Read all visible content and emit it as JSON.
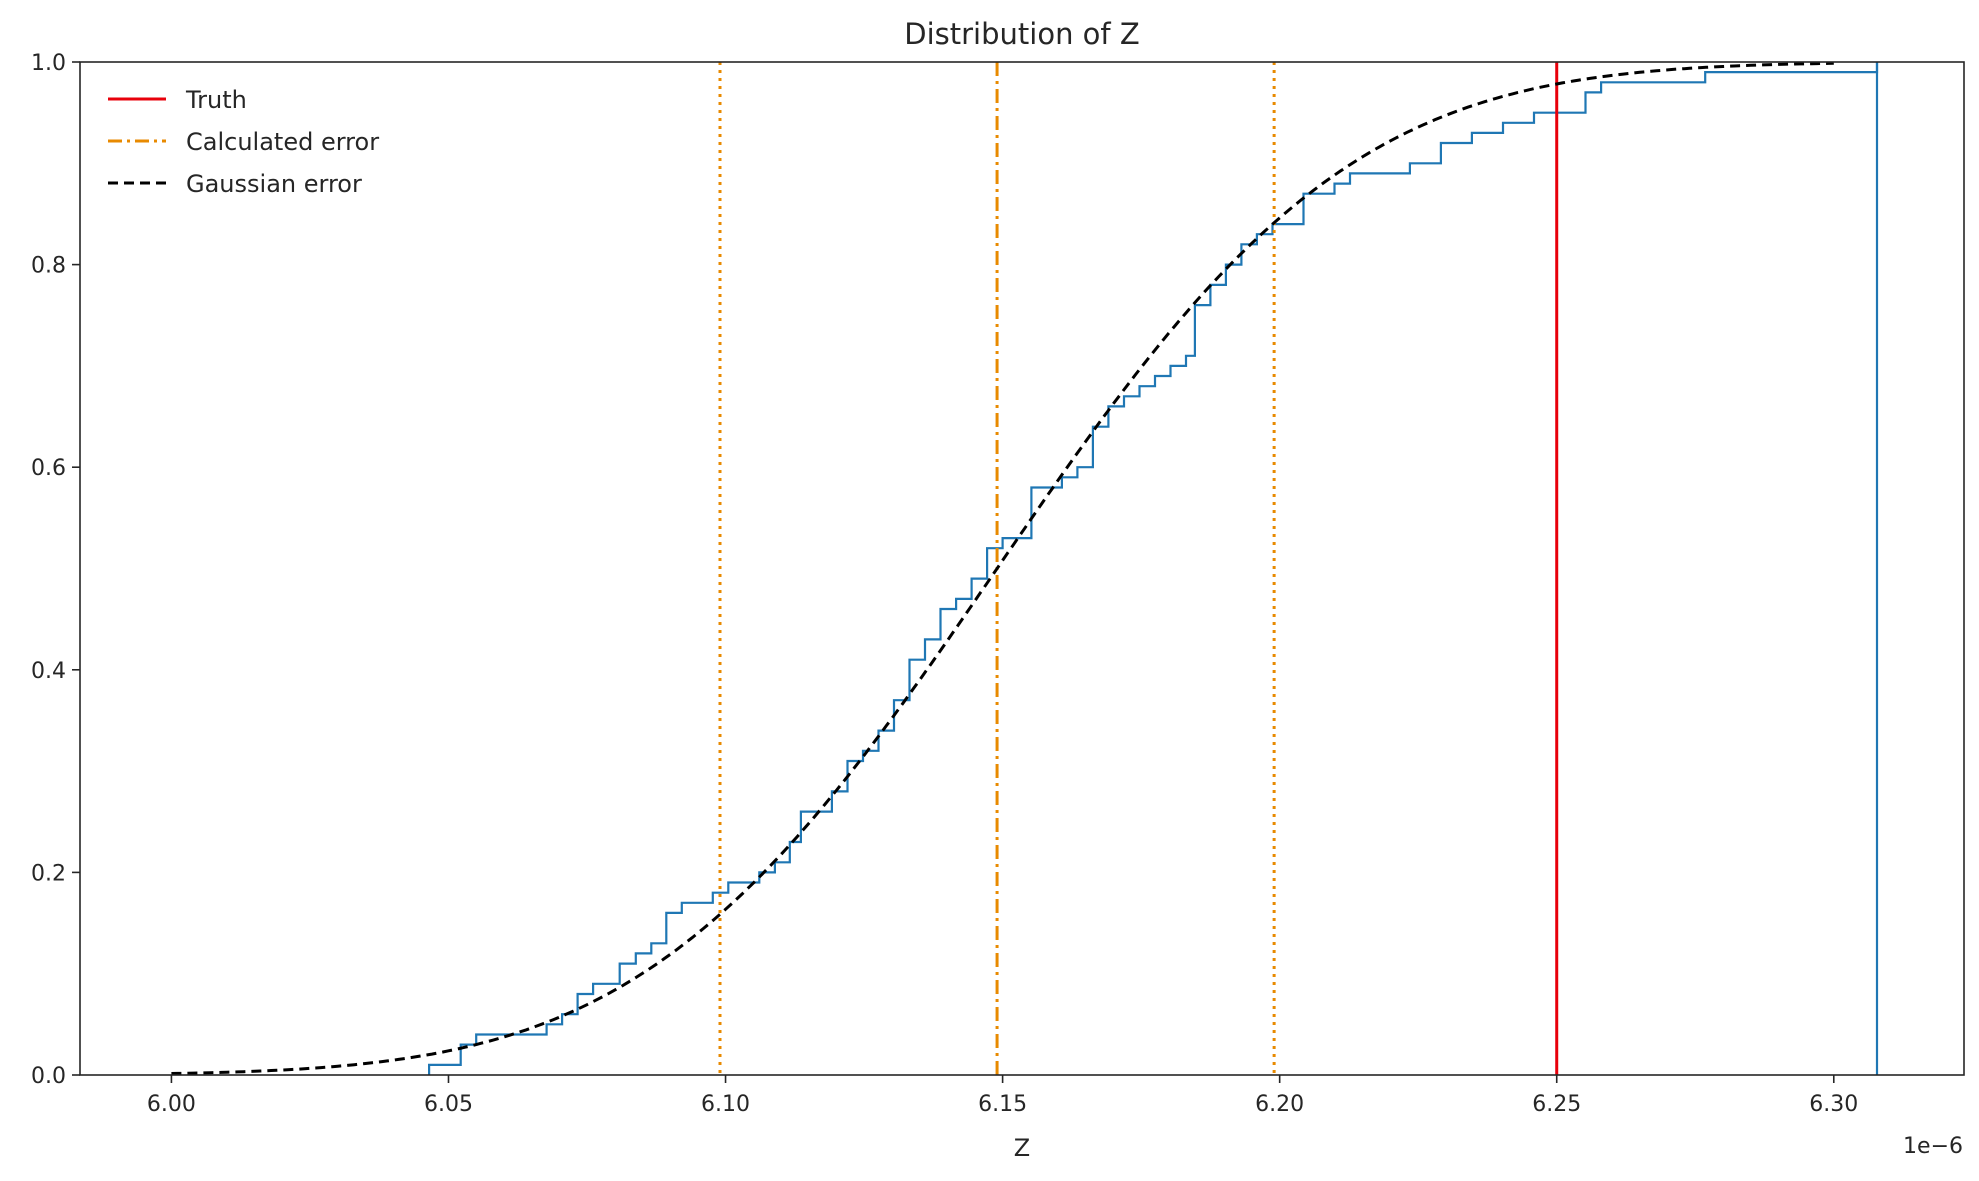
{
  "chart_data": {
    "type": "line",
    "title": "Distribution of Z",
    "xlabel": "Z",
    "ylabel": "",
    "x_offset_label": "1e−6",
    "xlim": [
      5.9835,
      6.3235
    ],
    "ylim": [
      0.0,
      1.0
    ],
    "x_ticks": [
      6.0,
      6.05,
      6.1,
      6.15,
      6.2,
      6.25,
      6.3
    ],
    "x_tick_labels": [
      "6.00",
      "6.05",
      "6.10",
      "6.15",
      "6.20",
      "6.25",
      "6.30"
    ],
    "y_ticks": [
      0.0,
      0.2,
      0.4,
      0.6,
      0.8,
      1.0
    ],
    "y_tick_labels": [
      "0.0",
      "0.2",
      "0.4",
      "0.6",
      "0.8",
      "1.0"
    ],
    "grid": false,
    "legend_position": "top-left",
    "legend": [
      {
        "name": "Truth",
        "style": "solid",
        "color": "#e8000b"
      },
      {
        "name": "Calculated error",
        "style": "dashdot",
        "color": "#e88a00"
      },
      {
        "name": "Gaussian error",
        "style": "dashed",
        "color": "#000000"
      }
    ],
    "vertical_lines": [
      {
        "x": 6.25,
        "style": "solid",
        "color": "#e8000b"
      },
      {
        "x": 6.149,
        "style": "dashdot",
        "color": "#e88a00"
      },
      {
        "x": 6.099,
        "style": "dotted",
        "color": "#e88a00"
      },
      {
        "x": 6.199,
        "style": "dotted",
        "color": "#e88a00"
      }
    ],
    "gaussian_cdf": {
      "mean": 6.149,
      "std": 0.05,
      "x_range": [
        6.0,
        6.3
      ],
      "color": "#000000",
      "style": "dashed"
    },
    "ecdf": {
      "color": "#1f77b4",
      "steps": [
        [
          6.0465,
          0.01
        ],
        [
          6.0522,
          0.03
        ],
        [
          6.055,
          0.04
        ],
        [
          6.0677,
          0.05
        ],
        [
          6.0705,
          0.06
        ],
        [
          6.0733,
          0.08
        ],
        [
          6.0761,
          0.09
        ],
        [
          6.0809,
          0.11
        ],
        [
          6.0838,
          0.12
        ],
        [
          6.0866,
          0.13
        ],
        [
          6.0893,
          0.16
        ],
        [
          6.0921,
          0.17
        ],
        [
          6.0977,
          0.18
        ],
        [
          6.1005,
          0.19
        ],
        [
          6.1061,
          0.2
        ],
        [
          6.1089,
          0.21
        ],
        [
          6.1116,
          0.23
        ],
        [
          6.1136,
          0.26
        ],
        [
          6.1192,
          0.28
        ],
        [
          6.122,
          0.31
        ],
        [
          6.1248,
          0.32
        ],
        [
          6.1276,
          0.34
        ],
        [
          6.1304,
          0.37
        ],
        [
          6.1332,
          0.41
        ],
        [
          6.136,
          0.43
        ],
        [
          6.1388,
          0.46
        ],
        [
          6.1416,
          0.47
        ],
        [
          6.1444,
          0.49
        ],
        [
          6.1472,
          0.52
        ],
        [
          6.15,
          0.53
        ],
        [
          6.1552,
          0.58
        ],
        [
          6.1607,
          0.59
        ],
        [
          6.1635,
          0.6
        ],
        [
          6.1663,
          0.64
        ],
        [
          6.1691,
          0.66
        ],
        [
          6.1719,
          0.67
        ],
        [
          6.1747,
          0.68
        ],
        [
          6.1775,
          0.69
        ],
        [
          6.1803,
          0.7
        ],
        [
          6.1831,
          0.71
        ],
        [
          6.1847,
          0.76
        ],
        [
          6.1875,
          0.78
        ],
        [
          6.1903,
          0.8
        ],
        [
          6.1931,
          0.82
        ],
        [
          6.1959,
          0.83
        ],
        [
          6.1987,
          0.84
        ],
        [
          6.2043,
          0.87
        ],
        [
          6.2099,
          0.88
        ],
        [
          6.2127,
          0.89
        ],
        [
          6.2235,
          0.9
        ],
        [
          6.2291,
          0.92
        ],
        [
          6.2347,
          0.93
        ],
        [
          6.2403,
          0.94
        ],
        [
          6.2459,
          0.95
        ],
        [
          6.2552,
          0.97
        ],
        [
          6.258,
          0.98
        ],
        [
          6.2768,
          0.99
        ],
        [
          6.3078,
          1.0
        ]
      ],
      "end_x": 6.3078
    }
  }
}
